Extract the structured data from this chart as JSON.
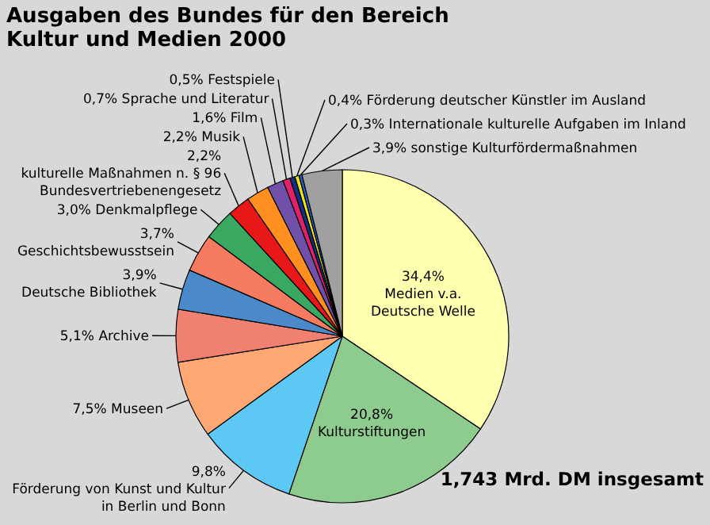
{
  "chart_data": {
    "type": "pie",
    "title": "Ausgaben des Bundes für den Bereich Kultur und Medien 2000",
    "categories": [
      "Medien v.a. Deutsche Welle",
      "Kulturstiftungen",
      "Förderung von Kunst und Kultur in Berlin und Bonn",
      "Museen",
      "Archive",
      "Deutsche Bibliothek",
      "Geschichtsbewusstsein",
      "Denkmalpflege",
      "kulturelle Maßnahmen n. § 96 Bundesvertriebenengesetz",
      "Musik",
      "Film",
      "Sprache und Literatur",
      "Festspiele",
      "Förderung deutscher Künstler im Ausland",
      "Internationale kulturelle Aufgaben im Inland",
      "sonstige Kulturfördermaßnahmen"
    ],
    "values": [
      34.4,
      20.8,
      9.8,
      7.5,
      5.1,
      3.9,
      3.7,
      3.0,
      2.2,
      2.2,
      1.6,
      0.7,
      0.5,
      0.4,
      0.3,
      3.9
    ],
    "value_labels": [
      "34,4%",
      "20,8%",
      "9,8%",
      "7,5%",
      "5,1%",
      "3,9%",
      "3,7%",
      "3,0%",
      "2,2%",
      "2,2%",
      "1,6%",
      "0,7%",
      "0,5%",
      "0,4%",
      "0,3%",
      "3,9%"
    ],
    "colors": [
      "#ffffb0",
      "#8ecb8e",
      "#5ec8f5",
      "#ffa874",
      "#f08070",
      "#4a8ac8",
      "#f47a60",
      "#3aa860",
      "#e81818",
      "#ff9020",
      "#7050a8",
      "#e0206a",
      "#103080",
      "#f0e020",
      "#2060c0",
      "#a0a0a0"
    ],
    "annotations": [
      "1,743 Mrd. DM insgesamt"
    ]
  }
}
